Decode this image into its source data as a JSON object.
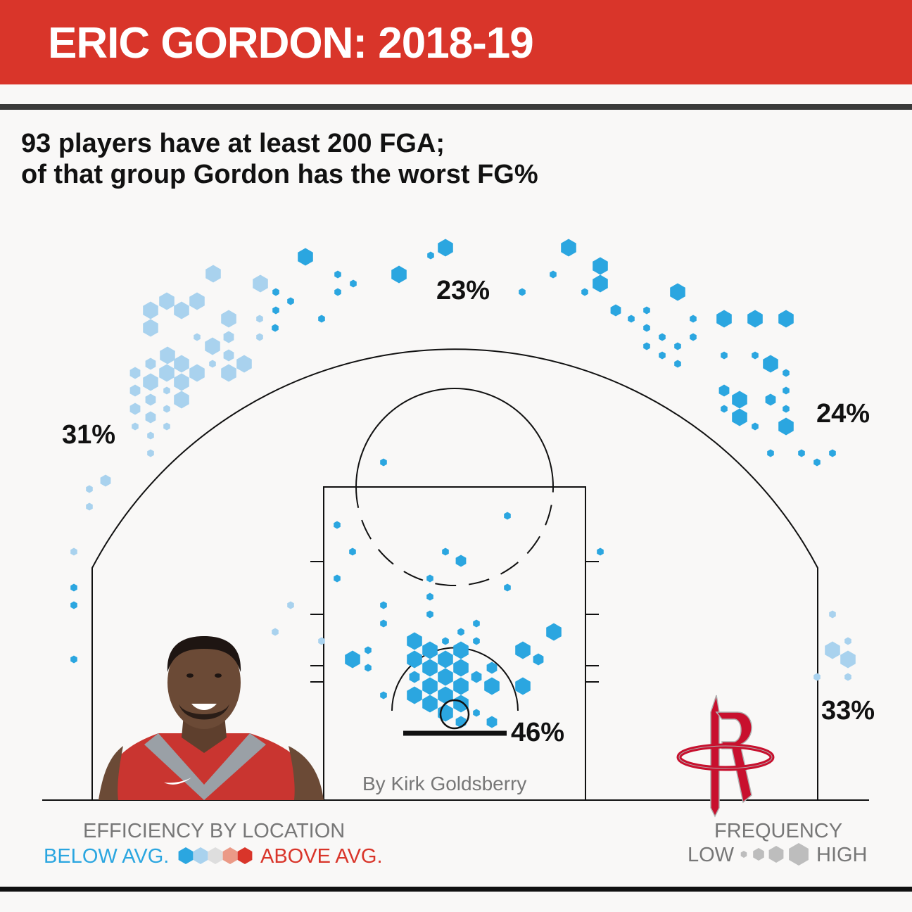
{
  "header": {
    "title": "ERIC GORDON: 2018-19",
    "banner_color": "#d9352a"
  },
  "subtitle": {
    "line1": "93 players have at least 200 FGA;",
    "line2": "of that group Gordon has the worst FG%"
  },
  "byline": "By Kirk Goldsberry",
  "chart_data": {
    "type": "scatter",
    "subtype": "hexbin shot chart",
    "zones": [
      {
        "id": "left-corner-three",
        "label": "33%",
        "fg_pct": 33
      },
      {
        "id": "left-wing-three",
        "label": "24%",
        "fg_pct": 24
      },
      {
        "id": "top-three",
        "label": "23%",
        "fg_pct": 23
      },
      {
        "id": "right-wing-three",
        "label": "31%",
        "fg_pct": 31
      },
      {
        "id": "restricted-area",
        "label": "46%",
        "fg_pct": 46
      }
    ],
    "color_scale": [
      "#2ba6e0",
      "#a9d2ee",
      "#dedede",
      "#eb9a87",
      "#d9352a"
    ],
    "size_scale": [
      "low",
      "high"
    ],
    "hexes": [
      [
        434,
        365,
        3,
        0
      ],
      [
        612,
        363,
        1,
        0
      ],
      [
        633,
        352,
        3,
        0
      ],
      [
        567,
        390,
        3,
        0
      ],
      [
        480,
        390,
        1,
        0
      ],
      [
        502,
        403,
        1,
        0
      ],
      [
        480,
        415,
        1,
        0
      ],
      [
        303,
        389,
        3,
        1
      ],
      [
        370,
        403,
        3,
        1
      ],
      [
        392,
        415,
        1,
        0
      ],
      [
        413,
        428,
        1,
        0
      ],
      [
        392,
        441,
        1,
        0
      ],
      [
        457,
        453,
        1,
        0
      ],
      [
        369,
        453,
        1,
        1
      ],
      [
        237,
        428,
        3,
        1
      ],
      [
        280,
        428,
        3,
        1
      ],
      [
        258,
        441,
        3,
        1
      ],
      [
        214,
        441,
        3,
        1
      ],
      [
        325,
        453,
        3,
        1
      ],
      [
        214,
        466,
        3,
        1
      ],
      [
        280,
        479,
        1,
        1
      ],
      [
        391,
        466,
        1,
        0
      ],
      [
        369,
        479,
        1,
        1
      ],
      [
        325,
        479,
        2,
        1
      ],
      [
        302,
        492,
        3,
        1
      ],
      [
        238,
        505,
        3,
        1
      ],
      [
        325,
        505,
        2,
        1
      ],
      [
        347,
        517,
        3,
        1
      ],
      [
        214,
        517,
        2,
        1
      ],
      [
        258,
        517,
        3,
        1
      ],
      [
        302,
        517,
        1,
        1
      ],
      [
        192,
        530,
        2,
        1
      ],
      [
        237,
        530,
        3,
        1
      ],
      [
        280,
        530,
        3,
        1
      ],
      [
        325,
        530,
        3,
        1
      ],
      [
        214,
        543,
        3,
        1
      ],
      [
        258,
        543,
        3,
        1
      ],
      [
        192,
        555,
        2,
        1
      ],
      [
        237,
        555,
        1,
        1
      ],
      [
        214,
        568,
        2,
        1
      ],
      [
        258,
        568,
        3,
        1
      ],
      [
        192,
        581,
        2,
        1
      ],
      [
        237,
        581,
        1,
        1
      ],
      [
        214,
        593,
        2,
        1
      ],
      [
        192,
        606,
        1,
        1
      ],
      [
        237,
        606,
        1,
        1
      ],
      [
        214,
        619,
        1,
        1
      ],
      [
        214,
        644,
        1,
        1
      ],
      [
        150,
        683,
        2,
        1
      ],
      [
        127,
        695,
        1,
        1
      ],
      [
        127,
        720,
        1,
        1
      ],
      [
        105,
        784,
        1,
        1
      ],
      [
        808,
        352,
        3,
        0
      ],
      [
        786,
        390,
        1,
        0
      ],
      [
        853,
        378,
        3,
        0
      ],
      [
        853,
        403,
        3,
        0
      ],
      [
        742,
        415,
        1,
        0
      ],
      [
        831,
        415,
        1,
        0
      ],
      [
        963,
        415,
        3,
        0
      ],
      [
        875,
        441,
        2,
        0
      ],
      [
        919,
        441,
        1,
        0
      ],
      [
        897,
        453,
        1,
        0
      ],
      [
        985,
        453,
        1,
        0
      ],
      [
        1029,
        453,
        3,
        0
      ],
      [
        1073,
        453,
        3,
        0
      ],
      [
        1117,
        453,
        3,
        0
      ],
      [
        919,
        466,
        1,
        0
      ],
      [
        941,
        479,
        1,
        0
      ],
      [
        985,
        479,
        1,
        0
      ],
      [
        919,
        492,
        1,
        0
      ],
      [
        963,
        492,
        1,
        0
      ],
      [
        941,
        505,
        1,
        0
      ],
      [
        1029,
        505,
        1,
        0
      ],
      [
        1073,
        505,
        1,
        0
      ],
      [
        963,
        517,
        1,
        0
      ],
      [
        1095,
        517,
        3,
        0
      ],
      [
        1117,
        530,
        1,
        0
      ],
      [
        1029,
        555,
        2,
        0
      ],
      [
        1117,
        555,
        1,
        0
      ],
      [
        1051,
        568,
        3,
        0
      ],
      [
        1095,
        568,
        2,
        0
      ],
      [
        1029,
        581,
        1,
        0
      ],
      [
        1117,
        581,
        1,
        0
      ],
      [
        1051,
        593,
        3,
        0
      ],
      [
        1073,
        606,
        1,
        0
      ],
      [
        1117,
        606,
        3,
        0
      ],
      [
        1095,
        644,
        1,
        0
      ],
      [
        1139,
        644,
        1,
        0
      ],
      [
        1183,
        644,
        1,
        0
      ],
      [
        1161,
        657,
        1,
        0
      ],
      [
        545,
        657,
        1,
        0
      ],
      [
        721,
        733,
        1,
        0
      ],
      [
        479,
        746,
        1,
        0
      ],
      [
        853,
        784,
        1,
        0
      ],
      [
        633,
        784,
        1,
        0
      ],
      [
        501,
        784,
        1,
        0
      ],
      [
        655,
        797,
        2,
        0
      ],
      [
        479,
        822,
        1,
        0
      ],
      [
        611,
        822,
        1,
        0
      ],
      [
        721,
        835,
        1,
        0
      ],
      [
        611,
        848,
        1,
        0
      ],
      [
        545,
        860,
        1,
        0
      ],
      [
        413,
        860,
        1,
        1
      ],
      [
        611,
        873,
        1,
        0
      ],
      [
        545,
        886,
        1,
        0
      ],
      [
        677,
        886,
        1,
        0
      ],
      [
        391,
        898,
        1,
        1
      ],
      [
        655,
        898,
        1,
        0
      ],
      [
        787,
        898,
        3,
        0
      ],
      [
        589,
        911,
        3,
        0
      ],
      [
        633,
        911,
        1,
        0
      ],
      [
        677,
        911,
        1,
        0
      ],
      [
        457,
        911,
        1,
        1
      ],
      [
        523,
        924,
        1,
        0
      ],
      [
        611,
        924,
        3,
        0
      ],
      [
        655,
        924,
        3,
        0
      ],
      [
        743,
        924,
        3,
        0
      ],
      [
        501,
        937,
        3,
        0
      ],
      [
        589,
        937,
        3,
        0
      ],
      [
        633,
        937,
        3,
        0
      ],
      [
        765,
        937,
        2,
        0
      ],
      [
        523,
        949,
        1,
        0
      ],
      [
        611,
        949,
        3,
        0
      ],
      [
        655,
        949,
        3,
        0
      ],
      [
        699,
        949,
        2,
        0
      ],
      [
        589,
        962,
        2,
        0
      ],
      [
        633,
        962,
        3,
        0
      ],
      [
        677,
        962,
        2,
        0
      ],
      [
        611,
        975,
        3,
        0
      ],
      [
        655,
        975,
        3,
        0
      ],
      [
        743,
        975,
        3,
        0
      ],
      [
        699,
        975,
        3,
        0
      ],
      [
        545,
        988,
        1,
        0
      ],
      [
        589,
        988,
        3,
        0
      ],
      [
        633,
        988,
        3,
        0
      ],
      [
        611,
        1000,
        3,
        0
      ],
      [
        655,
        1000,
        3,
        0
      ],
      [
        633,
        1013,
        3,
        0
      ],
      [
        677,
        1013,
        1,
        0
      ],
      [
        655,
        1026,
        2,
        0
      ],
      [
        699,
        1026,
        2,
        0
      ],
      [
        105,
        835,
        1,
        0
      ],
      [
        105,
        860,
        1,
        0
      ],
      [
        105,
        937,
        1,
        0
      ],
      [
        1183,
        873,
        1,
        1
      ],
      [
        1205,
        911,
        1,
        1
      ],
      [
        1183,
        924,
        3,
        1
      ],
      [
        1205,
        937,
        3,
        1
      ],
      [
        1161,
        962,
        1,
        1
      ],
      [
        1205,
        962,
        1,
        1
      ]
    ]
  },
  "labels": {
    "top": "23%",
    "left_wing": "31%",
    "right_wing": "24%",
    "right_corner": "33%",
    "rim": "46%"
  },
  "legend": {
    "efficiency_title": "EFFICIENCY BY LOCATION",
    "below_avg": "BELOW AVG.",
    "above_avg": "ABOVE AVG.",
    "frequency_title": "FREQUENCY",
    "low": "LOW",
    "high": "HIGH",
    "below_color": "#2ba6e0",
    "above_color": "#d9352a",
    "neutral_text_color": "#777777"
  },
  "images": {
    "player_photo": "player-portrait",
    "team_logo": "rockets-logo"
  }
}
